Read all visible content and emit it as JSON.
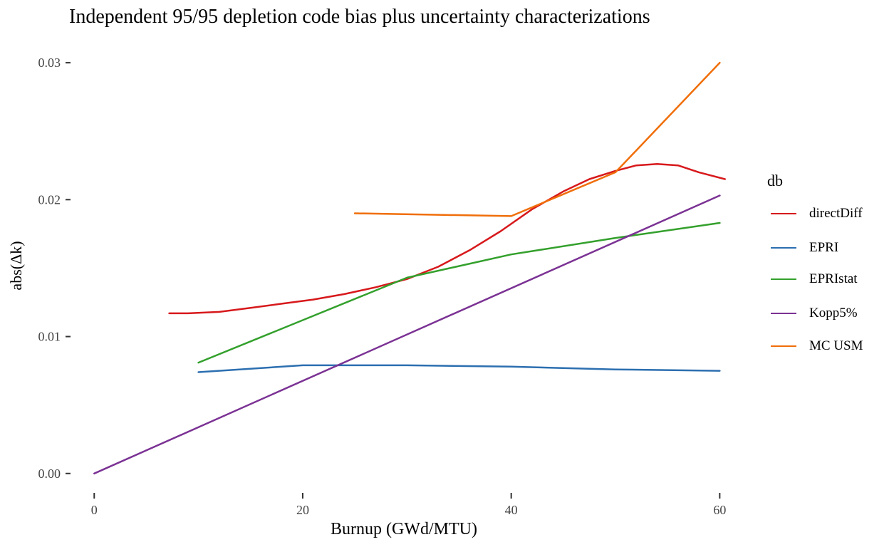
{
  "chart_data": {
    "type": "line",
    "title": "Independent 95/95 depletion code bias plus uncertainty characterizations",
    "xlabel": "Burnup (GWd/MTU)",
    "ylabel": "abs(Δk)",
    "xlim": [
      -2,
      61
    ],
    "ylim": [
      -0.001,
      0.0312
    ],
    "xticks": [
      0,
      20,
      40,
      60
    ],
    "xtick_labels": [
      "0",
      "20",
      "40",
      "60"
    ],
    "yticks": [
      0,
      0.01,
      0.02,
      0.03
    ],
    "ytick_labels": [
      "0.00",
      "0.01",
      "0.02",
      "0.03"
    ],
    "grid": false,
    "legend_title": "db",
    "legend_position": "right",
    "series": [
      {
        "name": "directDiff",
        "color": "#d7191c",
        "x": [
          7.2,
          9,
          12,
          15,
          18,
          21,
          24,
          27,
          30,
          33,
          36,
          39,
          42,
          45,
          47.5,
          50,
          52,
          54,
          56,
          58,
          60.5
        ],
        "y": [
          0.0117,
          0.0117,
          0.0118,
          0.0121,
          0.0124,
          0.0127,
          0.0131,
          0.0136,
          0.0142,
          0.0151,
          0.0163,
          0.0177,
          0.0193,
          0.0206,
          0.0215,
          0.0221,
          0.0225,
          0.0226,
          0.0225,
          0.022,
          0.0215
        ]
      },
      {
        "name": "EPRI",
        "color": "#2c6fb0",
        "x": [
          10,
          20,
          30,
          40,
          50,
          60
        ],
        "y": [
          0.0074,
          0.0079,
          0.0079,
          0.0078,
          0.0076,
          0.0075
        ]
      },
      {
        "name": "EPRIstat",
        "color": "#33a02c",
        "x": [
          10,
          20,
          30,
          40,
          50,
          60
        ],
        "y": [
          0.0081,
          0.0112,
          0.0143,
          0.016,
          0.0172,
          0.0183
        ]
      },
      {
        "name": "Kopp5%",
        "color": "#7b3294",
        "x": [
          0,
          60
        ],
        "y": [
          0.0,
          0.0203
        ]
      },
      {
        "name": "MC USM",
        "color": "#f06e0a",
        "x": [
          25,
          40,
          50,
          60
        ],
        "y": [
          0.019,
          0.0188,
          0.022,
          0.03
        ]
      }
    ]
  }
}
